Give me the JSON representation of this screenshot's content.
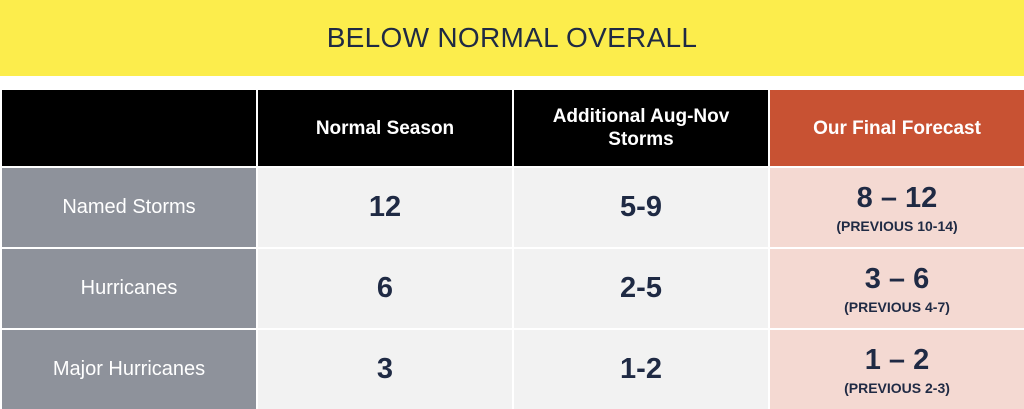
{
  "banner": {
    "title": "BELOW NORMAL OVERALL"
  },
  "table": {
    "headers": {
      "corner": "",
      "normal_season": "Normal Season",
      "additional": "Additional Aug-Nov Storms",
      "final_forecast": "Our Final Forecast"
    },
    "rows": [
      {
        "label": "Named Storms",
        "normal": "12",
        "additional": "5-9",
        "final": "8 – 12",
        "previous": "(PREVIOUS 10-14)"
      },
      {
        "label": "Hurricanes",
        "normal": "6",
        "additional": "2-5",
        "final": "3 – 6",
        "previous": "(PREVIOUS 4-7)"
      },
      {
        "label": "Major Hurricanes",
        "normal": "3",
        "additional": "1-2",
        "final": "1 – 2",
        "previous": "(PREVIOUS 2-3)"
      }
    ]
  },
  "colors": {
    "banner": "#fced4c",
    "header": "#000000",
    "final_header": "#c85233",
    "row_label": "#8e929b",
    "value_cell": "#f2f2f2",
    "final_cell": "#f4d9d2",
    "text_dark": "#1f2a44"
  }
}
